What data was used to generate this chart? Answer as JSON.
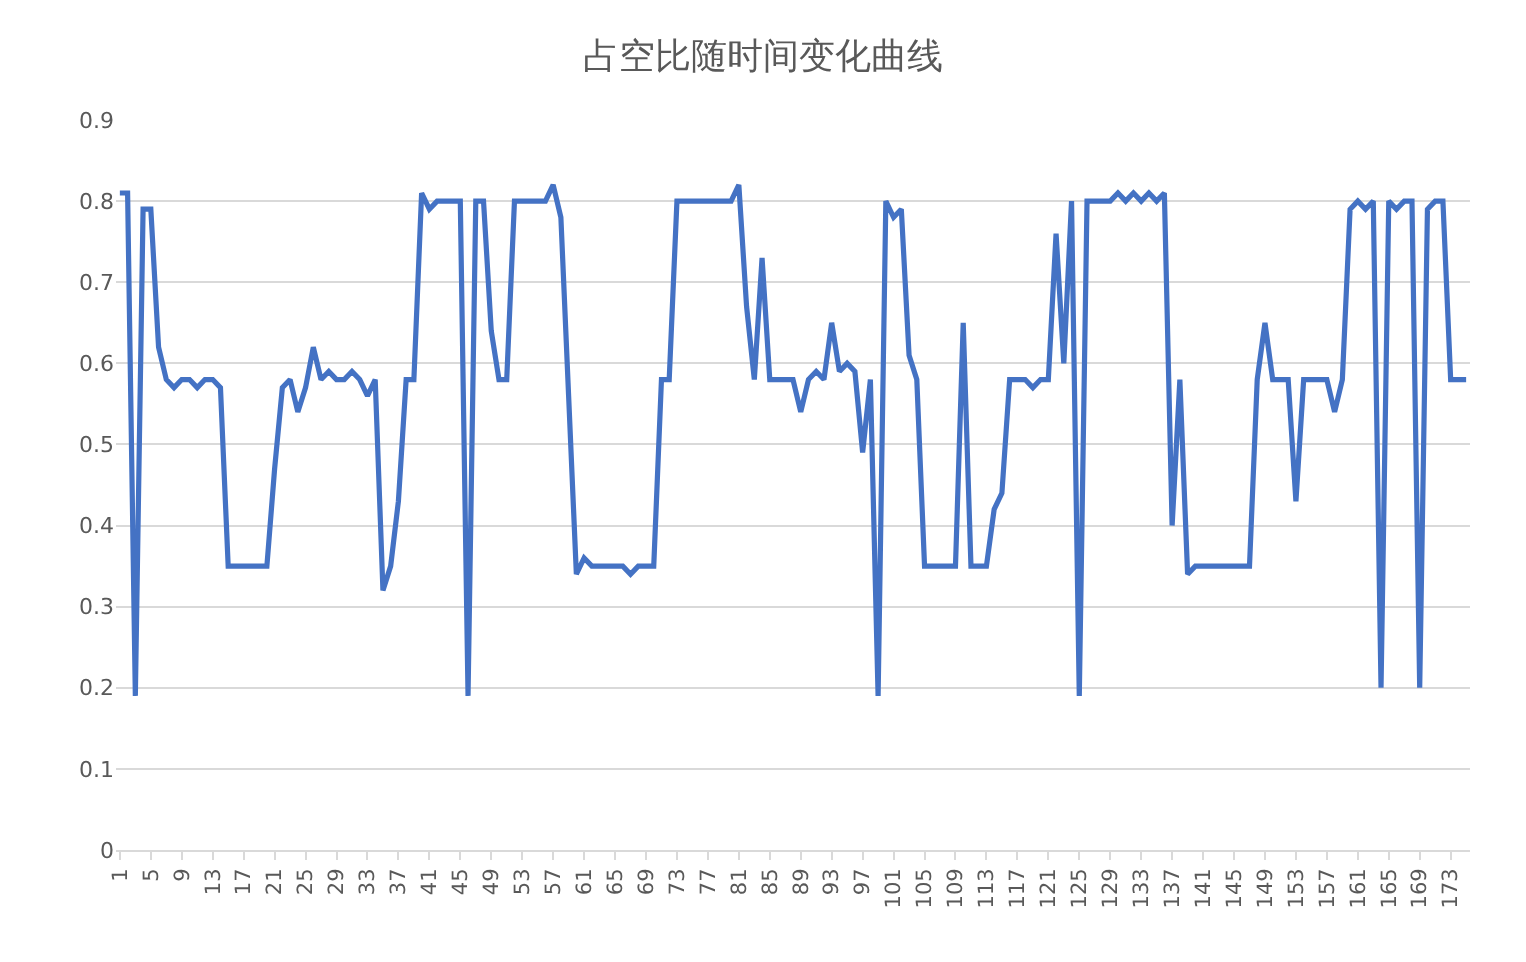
{
  "chart_data": {
    "type": "line",
    "title": "占空比随时间变化曲线",
    "x": [
      1,
      2,
      3,
      4,
      5,
      6,
      7,
      8,
      9,
      10,
      11,
      12,
      13,
      14,
      15,
      16,
      17,
      18,
      19,
      20,
      21,
      22,
      23,
      24,
      25,
      26,
      27,
      28,
      29,
      30,
      31,
      32,
      33,
      34,
      35,
      36,
      37,
      38,
      39,
      40,
      41,
      42,
      43,
      44,
      45,
      46,
      47,
      48,
      49,
      50,
      51,
      52,
      53,
      54,
      55,
      56,
      57,
      58,
      59,
      60,
      61,
      62,
      63,
      64,
      65,
      66,
      67,
      68,
      69,
      70,
      71,
      72,
      73,
      74,
      75,
      76,
      77,
      78,
      79,
      80,
      81,
      82,
      83,
      84,
      85,
      86,
      87,
      88,
      89,
      90,
      91,
      92,
      93,
      94,
      95,
      96,
      97,
      98,
      99,
      100,
      101,
      102,
      103,
      104,
      105,
      106,
      107,
      108,
      109,
      110,
      111,
      112,
      113,
      114,
      115,
      116,
      117,
      118,
      119,
      120,
      121,
      122,
      123,
      124,
      125,
      126,
      127,
      128,
      129,
      130,
      131,
      132,
      133,
      134,
      135,
      136,
      137,
      138,
      139,
      140,
      141,
      142,
      143,
      144,
      145,
      146,
      147,
      148,
      149,
      150,
      151,
      152,
      153,
      154,
      155,
      156,
      157,
      158,
      159,
      160,
      161,
      162,
      163,
      164,
      165,
      166,
      167,
      168,
      169,
      170,
      171,
      172,
      173,
      174,
      175
    ],
    "series": [
      {
        "color": "#4472c4",
        "values": [
          0.81,
          0.81,
          0.19,
          0.79,
          0.79,
          0.62,
          0.58,
          0.57,
          0.58,
          0.58,
          0.57,
          0.58,
          0.58,
          0.57,
          0.35,
          0.35,
          0.35,
          0.35,
          0.35,
          0.35,
          0.47,
          0.57,
          0.58,
          0.54,
          0.57,
          0.62,
          0.58,
          0.59,
          0.58,
          0.58,
          0.59,
          0.58,
          0.56,
          0.58,
          0.32,
          0.35,
          0.43,
          0.58,
          0.58,
          0.81,
          0.79,
          0.8,
          0.8,
          0.8,
          0.8,
          0.19,
          0.8,
          0.8,
          0.64,
          0.58,
          0.58,
          0.8,
          0.8,
          0.8,
          0.8,
          0.8,
          0.82,
          0.78,
          0.56,
          0.34,
          0.36,
          0.35,
          0.35,
          0.35,
          0.35,
          0.35,
          0.34,
          0.35,
          0.35,
          0.35,
          0.58,
          0.58,
          0.8,
          0.8,
          0.8,
          0.8,
          0.8,
          0.8,
          0.8,
          0.8,
          0.82,
          0.67,
          0.58,
          0.73,
          0.58,
          0.58,
          0.58,
          0.58,
          0.54,
          0.58,
          0.59,
          0.58,
          0.65,
          0.59,
          0.6,
          0.59,
          0.49,
          0.58,
          0.19,
          0.8,
          0.78,
          0.79,
          0.61,
          0.58,
          0.35,
          0.35,
          0.35,
          0.35,
          0.35,
          0.65,
          0.35,
          0.35,
          0.35,
          0.42,
          0.44,
          0.58,
          0.58,
          0.58,
          0.57,
          0.58,
          0.58,
          0.76,
          0.6,
          0.8,
          0.19,
          0.8,
          0.8,
          0.8,
          0.8,
          0.81,
          0.8,
          0.81,
          0.8,
          0.81,
          0.8,
          0.81,
          0.4,
          0.58,
          0.34,
          0.35,
          0.35,
          0.35,
          0.35,
          0.35,
          0.35,
          0.35,
          0.35,
          0.58,
          0.65,
          0.58,
          0.58,
          0.58,
          0.43,
          0.58,
          0.58,
          0.58,
          0.58,
          0.54,
          0.58,
          0.79,
          0.8,
          0.79,
          0.8,
          0.2,
          0.8,
          0.79,
          0.8,
          0.8,
          0.2,
          0.79,
          0.8,
          0.8,
          0.58,
          0.58,
          0.58
        ]
      }
    ],
    "xlim": [
      0.5,
      175.5
    ],
    "xticks": [
      1,
      5,
      9,
      13,
      17,
      21,
      25,
      29,
      33,
      37,
      41,
      45,
      49,
      53,
      57,
      61,
      65,
      69,
      73,
      77,
      81,
      85,
      89,
      93,
      97,
      101,
      105,
      109,
      113,
      117,
      121,
      125,
      129,
      133,
      137,
      141,
      145,
      149,
      153,
      157,
      161,
      165,
      169,
      173
    ],
    "ylim": [
      0,
      0.9
    ],
    "yticks": [
      0,
      0.1,
      0.2,
      0.3,
      0.4,
      0.5,
      0.6,
      0.7,
      0.8,
      0.9
    ],
    "grid": "y",
    "marker": "none",
    "line_style": "solid"
  }
}
